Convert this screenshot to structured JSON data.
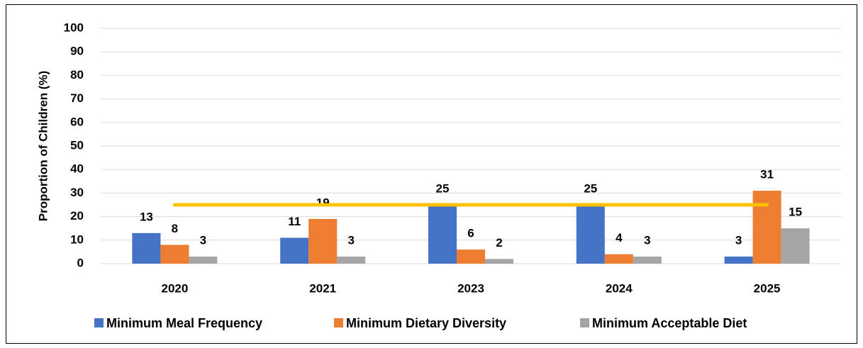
{
  "chart_data": {
    "type": "bar",
    "y_label": "Proportion of Children (%)",
    "categories": [
      "2020",
      "2021",
      "2023",
      "2024",
      "2025"
    ],
    "series": [
      {
        "name": "Minimum Meal Frequency",
        "color": "#4472c4",
        "values": [
          13,
          11,
          25,
          25,
          3
        ]
      },
      {
        "name": "Minimum Dietary Diversity",
        "color": "#ed7d31",
        "values": [
          8,
          19,
          6,
          4,
          31
        ]
      },
      {
        "name": "Minimum Acceptable Diet",
        "color": "#a5a5a5",
        "values": [
          3,
          3,
          2,
          3,
          15
        ]
      }
    ],
    "target_line": {
      "values": [
        25,
        25,
        25,
        25,
        25
      ],
      "color": "#ffc000"
    },
    "ylim": [
      0,
      100
    ],
    "yticks": [
      0,
      10,
      20,
      30,
      40,
      50,
      60,
      70,
      80,
      90,
      100
    ],
    "grid": true,
    "legend": "bottom"
  }
}
